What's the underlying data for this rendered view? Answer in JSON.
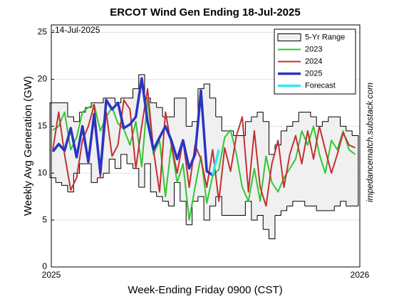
{
  "chart_data": {
    "type": "line",
    "title": "ERCOT Wind Gen Ending 18-Jul-2025",
    "xlabel": "Week-Ending Friday 0900 (CST)",
    "ylabel": "Weekly Avg Generation (GW)",
    "date_note": "-14-Jul-2025",
    "source_note": "impedancematch.substack.com",
    "note_color": "#1f1fb4",
    "xlim": [
      2025,
      2026
    ],
    "xticks": [
      2025,
      2026
    ],
    "ylim": [
      0,
      25.8
    ],
    "yticks": [
      0,
      5,
      10,
      15,
      20,
      25
    ],
    "grid": true,
    "legend": "upper right",
    "x": [
      2025.005,
      2025.024,
      2025.043,
      2025.063,
      2025.082,
      2025.101,
      2025.12,
      2025.139,
      2025.159,
      2025.178,
      2025.197,
      2025.216,
      2025.235,
      2025.255,
      2025.274,
      2025.293,
      2025.312,
      2025.331,
      2025.351,
      2025.37,
      2025.389,
      2025.408,
      2025.427,
      2025.447,
      2025.466,
      2025.485,
      2025.504,
      2025.523,
      2025.543,
      2025.562,
      2025.581,
      2025.6,
      2025.619,
      2025.639,
      2025.658,
      2025.677,
      2025.696,
      2025.715,
      2025.735,
      2025.754,
      2025.773,
      2025.792,
      2025.812,
      2025.831,
      2025.85,
      2025.869,
      2025.888,
      2025.908,
      2025.927,
      2025.946,
      2025.965,
      2025.985
    ],
    "range": {
      "name": "5-Yr Range",
      "color": "#f0f0f0",
      "low": [
        9.5,
        9,
        8.7,
        8,
        10,
        11,
        11,
        9,
        9.5,
        10,
        11.5,
        10.5,
        12,
        11,
        10.5,
        8.5,
        11,
        8,
        7.5,
        7,
        6.5,
        9,
        7,
        4.5,
        7,
        7.5,
        5,
        6.5,
        7.5,
        5.5,
        5.5,
        5.5,
        5.5,
        7,
        5,
        5.5,
        4,
        3,
        5.5,
        6,
        6.5,
        7,
        7,
        6.5,
        6.5,
        6,
        6,
        6,
        6.5,
        7,
        6.5,
        6.5
      ],
      "high": [
        17.5,
        17.5,
        17.5,
        16,
        15.5,
        16.5,
        17,
        17.5,
        17.5,
        18,
        18,
        17.5,
        18,
        18,
        19,
        20.5,
        18,
        17.5,
        17,
        16,
        16,
        18,
        18,
        15,
        15.5,
        19,
        19.5,
        18,
        16,
        14.5,
        14.5,
        14,
        14,
        15.5,
        16,
        16.5,
        15.5,
        12,
        13,
        14.5,
        15,
        15.5,
        16.5,
        16.5,
        16,
        15,
        15.5,
        16,
        16,
        15,
        14.5,
        14
      ]
    },
    "series": [
      {
        "name": "2023",
        "color": "#33c633",
        "width": 2,
        "values": [
          14.6,
          15,
          16.5,
          12.5,
          13.8,
          16.5,
          17,
          17.3,
          14.5,
          16,
          17,
          15.3,
          14.7,
          13,
          15.5,
          10.7,
          18,
          12,
          13.5,
          7.5,
          13,
          9,
          11,
          5,
          8.5,
          11.8,
          6.8,
          9.7,
          10.4,
          13.8,
          14.6,
          12,
          8.5,
          7,
          10.5,
          7,
          11.8,
          9,
          8,
          9.5,
          10.5,
          11.5,
          14.5,
          13,
          15,
          12,
          10,
          13.5,
          12.5,
          14.5,
          12.5,
          12
        ]
      },
      {
        "name": "2024",
        "color": "#c43030",
        "width": 2,
        "values": [
          12.5,
          16.5,
          12,
          8.2,
          9.5,
          13.5,
          15,
          17.3,
          9.5,
          16.5,
          11.8,
          13,
          17.8,
          16.8,
          10.5,
          15,
          19,
          12.5,
          8,
          16.5,
          13,
          10,
          13.5,
          8.5,
          13,
          11.5,
          8.5,
          12.5,
          7,
          12.7,
          10.2,
          14,
          16,
          8,
          14.5,
          8.5,
          6.5,
          11,
          13.5,
          8.5,
          12,
          14,
          11,
          14.5,
          11.5,
          15,
          12.5,
          10,
          12,
          14.3,
          13,
          12.7
        ]
      },
      {
        "name": "2025",
        "color": "#2a34c4",
        "width": 3.5,
        "values": [
          12.3,
          13.1,
          12.4,
          14.8,
          11.7,
          15,
          11.2,
          16.3,
          10,
          17.8,
          16.8,
          17.5,
          14.8,
          15.2,
          16,
          20.1,
          15.5,
          12.5,
          13.8,
          15,
          13.5,
          11.5,
          13.5,
          10.5,
          12,
          18.8,
          10.2,
          9.8,
          null,
          null,
          null,
          null,
          null,
          null,
          null,
          null,
          null,
          null,
          null,
          null,
          null,
          null,
          null,
          null,
          null,
          null,
          null,
          null,
          null,
          null,
          null,
          null
        ]
      },
      {
        "name": "Forecast",
        "color": "#33e8f5",
        "width": 3.5,
        "values": [
          null,
          null,
          null,
          null,
          null,
          null,
          null,
          null,
          null,
          null,
          null,
          null,
          null,
          null,
          null,
          null,
          null,
          null,
          null,
          null,
          null,
          null,
          null,
          null,
          null,
          null,
          null,
          9.8,
          12.5,
          null,
          null,
          null,
          null,
          null,
          null,
          null,
          null,
          null,
          null,
          null,
          null,
          null,
          null,
          null,
          null,
          null,
          null,
          null,
          null,
          null,
          null,
          null
        ]
      }
    ]
  }
}
